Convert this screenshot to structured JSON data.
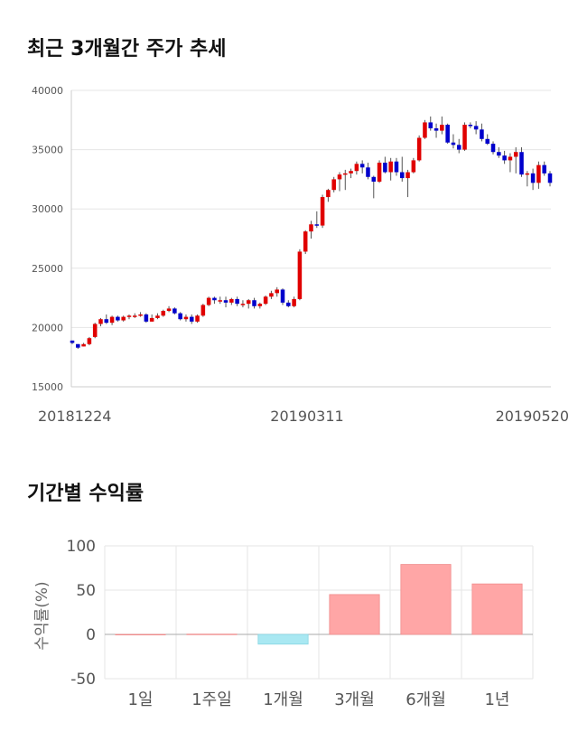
{
  "section1": {
    "title": "최근 3개월간 주가 추세"
  },
  "section2": {
    "title": "기간별 수익률"
  },
  "chart_data": [
    {
      "type": "candlestick",
      "yticks": [
        "40000",
        "35000",
        "30000",
        "25000",
        "20000",
        "15000"
      ],
      "ylim": [
        15000,
        40000
      ],
      "xlabels": [
        "20181224",
        "20190311",
        "20190520"
      ],
      "colors": {
        "up": "#e00000",
        "down": "#0000cc",
        "wick": "#555555"
      },
      "candles": [
        [
          18900,
          18900,
          18600,
          18700
        ],
        [
          18600,
          18600,
          18200,
          18300
        ],
        [
          18400,
          18700,
          18400,
          18600
        ],
        [
          18600,
          19200,
          18500,
          19100
        ],
        [
          19200,
          20400,
          19100,
          20300
        ],
        [
          20300,
          20800,
          20100,
          20700
        ],
        [
          20700,
          21100,
          20300,
          20400
        ],
        [
          20400,
          21000,
          20200,
          20900
        ],
        [
          20900,
          21000,
          20500,
          20600
        ],
        [
          20600,
          21000,
          20500,
          20900
        ],
        [
          20900,
          21100,
          20700,
          21000
        ],
        [
          21000,
          21200,
          20800,
          21000
        ],
        [
          21000,
          21300,
          20900,
          21100
        ],
        [
          21100,
          21200,
          20400,
          20500
        ],
        [
          20500,
          21100,
          20500,
          20800
        ],
        [
          20800,
          21200,
          20700,
          21000
        ],
        [
          21000,
          21500,
          20900,
          21400
        ],
        [
          21400,
          21800,
          21300,
          21600
        ],
        [
          21600,
          21700,
          21100,
          21200
        ],
        [
          21200,
          21300,
          20600,
          20700
        ],
        [
          20700,
          21100,
          20500,
          20900
        ],
        [
          20900,
          21100,
          20300,
          20500
        ],
        [
          20500,
          21100,
          20400,
          21000
        ],
        [
          21000,
          22000,
          20900,
          21900
        ],
        [
          21900,
          22600,
          21800,
          22500
        ],
        [
          22500,
          22600,
          22000,
          22300
        ],
        [
          22300,
          22600,
          22000,
          22300
        ],
        [
          22300,
          22600,
          21700,
          22100
        ],
        [
          22100,
          22500,
          21900,
          22400
        ],
        [
          22400,
          22600,
          21800,
          22000
        ],
        [
          22000,
          22300,
          21700,
          22000
        ],
        [
          22000,
          22400,
          21600,
          22300
        ],
        [
          22300,
          22500,
          21600,
          21800
        ],
        [
          21800,
          22100,
          21600,
          22000
        ],
        [
          22000,
          22700,
          21900,
          22600
        ],
        [
          22600,
          23100,
          22400,
          22900
        ],
        [
          22900,
          23400,
          22600,
          23200
        ],
        [
          23200,
          23300,
          21900,
          22100
        ],
        [
          22100,
          22300,
          21700,
          21800
        ],
        [
          21800,
          22600,
          21700,
          22400
        ],
        [
          22400,
          26600,
          22300,
          26400
        ],
        [
          26400,
          28200,
          26200,
          28100
        ],
        [
          28100,
          29000,
          27500,
          28700
        ],
        [
          28700,
          29800,
          28400,
          28600
        ],
        [
          28600,
          31200,
          28400,
          31000
        ],
        [
          31000,
          31700,
          30600,
          31600
        ],
        [
          31600,
          32700,
          31400,
          32500
        ],
        [
          32500,
          33100,
          31500,
          32900
        ],
        [
          32900,
          33300,
          31600,
          33000
        ],
        [
          33000,
          33400,
          32600,
          33200
        ],
        [
          33200,
          34000,
          32900,
          33800
        ],
        [
          33800,
          34100,
          33000,
          33500
        ],
        [
          33500,
          33900,
          32500,
          32700
        ],
        [
          32700,
          32800,
          30900,
          32300
        ],
        [
          32300,
          34100,
          32200,
          33900
        ],
        [
          33900,
          34400,
          33000,
          33100
        ],
        [
          33100,
          34300,
          32400,
          34000
        ],
        [
          34000,
          34300,
          32800,
          33100
        ],
        [
          33100,
          34400,
          32300,
          32600
        ],
        [
          32600,
          33300,
          31000,
          33100
        ],
        [
          33100,
          34300,
          33000,
          34100
        ],
        [
          34100,
          36200,
          34000,
          36000
        ],
        [
          36000,
          37500,
          35900,
          37300
        ],
        [
          37300,
          37800,
          36600,
          36800
        ],
        [
          36800,
          37200,
          36000,
          36600
        ],
        [
          36600,
          37800,
          36300,
          37100
        ],
        [
          37100,
          37200,
          35500,
          35600
        ],
        [
          35600,
          36300,
          35100,
          35400
        ],
        [
          35400,
          35900,
          34700,
          35000
        ],
        [
          35000,
          37300,
          34900,
          37100
        ],
        [
          37100,
          37300,
          36800,
          37000
        ],
        [
          37000,
          37400,
          36300,
          36700
        ],
        [
          36700,
          37200,
          35700,
          35900
        ],
        [
          35900,
          36300,
          35400,
          35500
        ],
        [
          35500,
          35700,
          34600,
          34800
        ],
        [
          34800,
          35200,
          34300,
          34500
        ],
        [
          34500,
          34900,
          33800,
          34100
        ],
        [
          34100,
          34700,
          33100,
          34400
        ],
        [
          34400,
          35200,
          33000,
          34800
        ],
        [
          34800,
          35200,
          32700,
          32900
        ],
        [
          32900,
          33200,
          31900,
          33000
        ],
        [
          33000,
          33400,
          31600,
          32200
        ],
        [
          32200,
          34000,
          31700,
          33700
        ],
        [
          33700,
          34000,
          32800,
          33000
        ],
        [
          33000,
          33200,
          31900,
          32200
        ]
      ]
    },
    {
      "type": "bar",
      "categories": [
        "1일",
        "1주일",
        "1개월",
        "3개월",
        "6개월",
        "1년"
      ],
      "values": [
        0,
        0.3,
        -11,
        45,
        79,
        57
      ],
      "ylabel": "수익률(%)",
      "yticks": [
        "100",
        "50",
        "0",
        "-50"
      ],
      "ylim": [
        -50,
        100
      ],
      "colors": {
        "positive": "#ffa6a6",
        "negative": "#a9e8f2"
      }
    }
  ]
}
